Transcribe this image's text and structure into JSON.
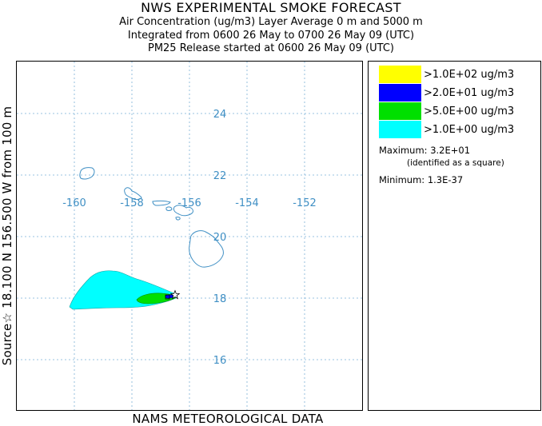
{
  "title": {
    "line1": "NWS EXPERIMENTAL SMOKE FORECAST",
    "line2": "Air Concentration (ug/m3) Layer Average    0 m and  5000 m",
    "line3": "Integrated from 0600 26 May to 0700 26 May 09 (UTC)",
    "line4": "PM25 Release started at 0600 26 May 09 (UTC)"
  },
  "side_label": "Source☆ 18.100  N 156.500  W     from   100 m",
  "bottom_label": "NAMS METEOROLOGICAL DATA",
  "map": {
    "longitude_labels": [
      "-160",
      "-158",
      "-156",
      "-154",
      "-152"
    ],
    "latitude_labels": [
      "24",
      "22",
      "20",
      "18",
      "16"
    ],
    "grid_color": "#7ab0d6",
    "label_color": "#3f8fc4",
    "coast_color": "#3f8fc4",
    "source": {
      "lat": 18.1,
      "lon": -156.5,
      "marker": "star-icon"
    }
  },
  "legend": {
    "entries": [
      {
        "label": ">1.0E+02 ug/m3",
        "color": "#ffff00"
      },
      {
        "label": ">2.0E+01 ug/m3",
        "color": "#0000ff"
      },
      {
        "label": ">5.0E+00 ug/m3",
        "color": "#00e000"
      },
      {
        "label": ">1.0E+00 ug/m3",
        "color": "#00ffff"
      }
    ],
    "maximum": "Maximum: 3.2E+01",
    "maximum_note": "(identified as a square)",
    "minimum": "Minimum: 1.3E-37"
  }
}
